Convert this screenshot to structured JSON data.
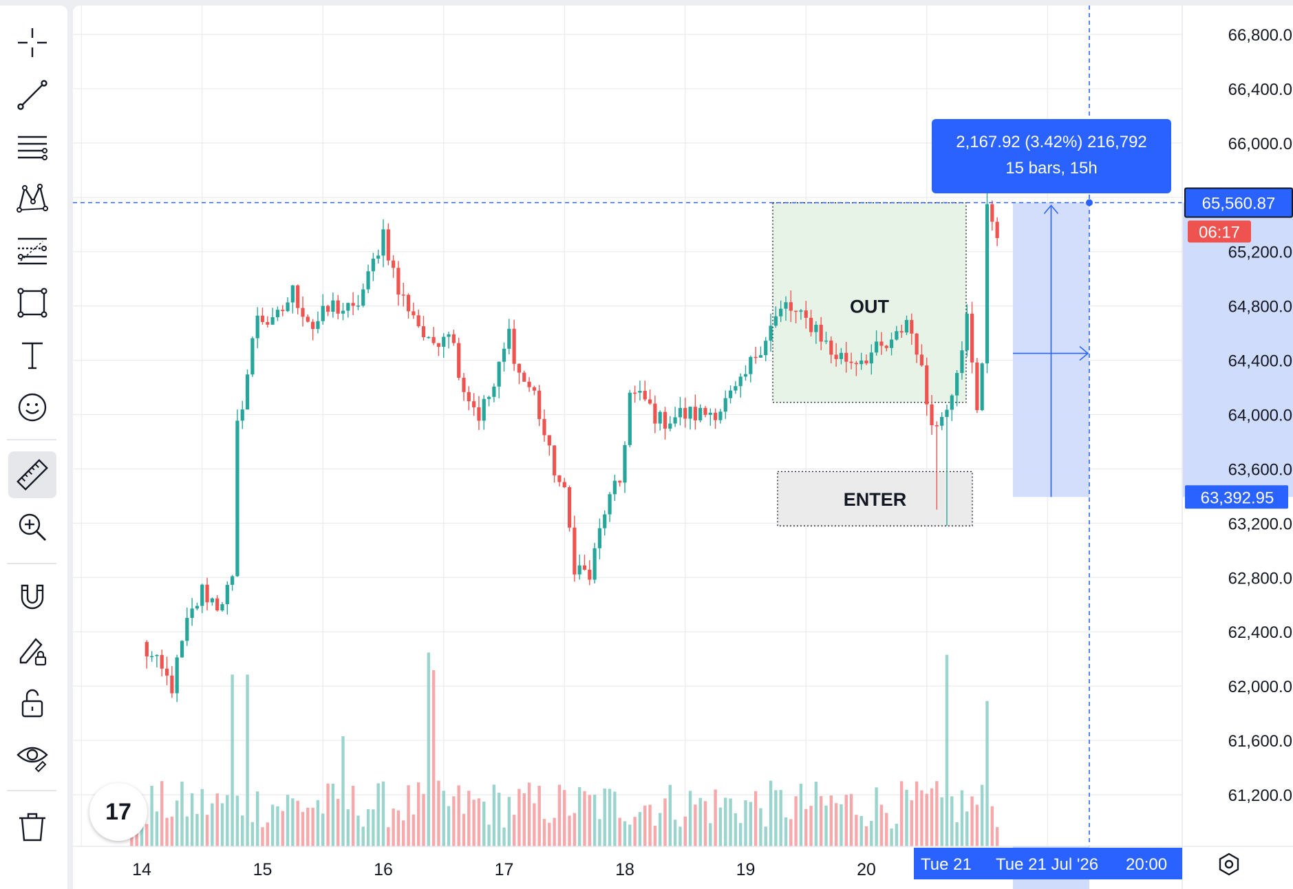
{
  "toolbar": {
    "tools": [
      {
        "name": "crosshair-icon"
      },
      {
        "name": "trend-line-icon"
      },
      {
        "name": "horizontal-lines-icon"
      },
      {
        "name": "pattern-icon"
      },
      {
        "name": "fib-retracement-icon"
      },
      {
        "name": "rectangle-icon"
      },
      {
        "name": "text-icon"
      },
      {
        "name": "emoji-icon"
      },
      {
        "name": "ruler-icon",
        "active": true
      },
      {
        "name": "zoom-in-icon"
      },
      {
        "name": "magnet-icon"
      },
      {
        "name": "lock-drawing-icon"
      },
      {
        "name": "unlock-icon"
      },
      {
        "name": "eye-icon"
      },
      {
        "name": "trash-icon"
      }
    ]
  },
  "colors": {
    "up": "#26a69a",
    "down": "#ef5350",
    "accent": "#2962ff",
    "out_zone": "#e8f3e8",
    "enter_zone": "#ebebeb",
    "measure_fill": "#d0dcfc"
  },
  "logo": "17",
  "annotations": {
    "out_label": "OUT",
    "enter_label": "ENTER",
    "measure_line1": "2,167.92 (3.42%) 216,792",
    "measure_line2": "15 bars, 15h"
  },
  "price_tags": {
    "current_price": "65,560.87",
    "countdown": "06:17",
    "measure_low": "63,392.95"
  },
  "time_tags": {
    "crosshair_short": "Tue 21",
    "crosshair_full": "Tue 21 Jul '26",
    "crosshair_time": "20:00"
  },
  "chart_data": {
    "type": "candlestick",
    "symbol_note": "Hourly candles with volume histogram",
    "price_axis_labels": [
      "66,800.00",
      "66,400.00",
      "66,000.00",
      "65,200.00",
      "64,800.00",
      "64,400.00",
      "64,000.00",
      "63,600.00",
      "63,200.00",
      "62,800.00",
      "62,400.00",
      "62,000.00",
      "61,600.00",
      "61,200.00"
    ],
    "ylim": [
      60950,
      67050
    ],
    "time_axis_labels": [
      "14",
      "15",
      "16",
      "17",
      "18",
      "19",
      "20"
    ],
    "grid": true,
    "current_price": 65560.87,
    "measure": {
      "from_price": 63392.95,
      "to_price": 65560.87,
      "change": 2167.92,
      "percent": 3.42,
      "ticks": 216792,
      "bars": 15,
      "duration": "15h"
    },
    "zones": [
      {
        "label": "OUT",
        "top": 65560,
        "bottom": 64090
      },
      {
        "label": "ENTER",
        "top": 63580,
        "bottom": 63180
      }
    ],
    "anchors": [
      {
        "hour": 0,
        "price": 62300
      },
      {
        "hour": 3,
        "price": 62150
      },
      {
        "hour": 6,
        "price": 62000
      },
      {
        "hour": 9,
        "price": 62450
      },
      {
        "hour": 12,
        "price": 62700
      },
      {
        "hour": 15,
        "price": 62600
      },
      {
        "hour": 18,
        "price": 62750
      },
      {
        "hour": 19,
        "price": 63900
      },
      {
        "hour": 21,
        "price": 64300
      },
      {
        "hour": 23,
        "price": 64750
      },
      {
        "hour": 26,
        "price": 64650
      },
      {
        "hour": 30,
        "price": 64900
      },
      {
        "hour": 34,
        "price": 64650
      },
      {
        "hour": 38,
        "price": 64800
      },
      {
        "hour": 42,
        "price": 64750
      },
      {
        "hour": 45,
        "price": 65000
      },
      {
        "hour": 48,
        "price": 65350
      },
      {
        "hour": 51,
        "price": 64900
      },
      {
        "hour": 54,
        "price": 64750
      },
      {
        "hour": 57,
        "price": 64500
      },
      {
        "hour": 61,
        "price": 64650
      },
      {
        "hour": 64,
        "price": 64200
      },
      {
        "hour": 67,
        "price": 64000
      },
      {
        "hour": 70,
        "price": 64200
      },
      {
        "hour": 73,
        "price": 64600
      },
      {
        "hour": 75,
        "price": 64300
      },
      {
        "hour": 78,
        "price": 64150
      },
      {
        "hour": 81,
        "price": 63700
      },
      {
        "hour": 84,
        "price": 63400
      },
      {
        "hour": 86,
        "price": 62900
      },
      {
        "hour": 89,
        "price": 62800
      },
      {
        "hour": 92,
        "price": 63300
      },
      {
        "hour": 95,
        "price": 63500
      },
      {
        "hour": 97,
        "price": 64150
      },
      {
        "hour": 100,
        "price": 64100
      },
      {
        "hour": 103,
        "price": 63950
      },
      {
        "hour": 107,
        "price": 64000
      },
      {
        "hour": 111,
        "price": 64000
      },
      {
        "hour": 115,
        "price": 64050
      },
      {
        "hour": 119,
        "price": 64200
      },
      {
        "hour": 122,
        "price": 64450
      },
      {
        "hour": 125,
        "price": 64650
      },
      {
        "hour": 128,
        "price": 64800
      },
      {
        "hour": 131,
        "price": 64700
      },
      {
        "hour": 134,
        "price": 64650
      },
      {
        "hour": 137,
        "price": 64450
      },
      {
        "hour": 141,
        "price": 64400
      },
      {
        "hour": 145,
        "price": 64450
      },
      {
        "hour": 149,
        "price": 64500
      },
      {
        "hour": 152,
        "price": 64700
      },
      {
        "hour": 154,
        "price": 64500
      },
      {
        "hour": 156,
        "price": 64100
      },
      {
        "hour": 158,
        "price": 63900
      },
      {
        "hour": 161,
        "price": 64200
      },
      {
        "hour": 164,
        "price": 64700
      },
      {
        "hour": 166,
        "price": 64000
      },
      {
        "hour": 167,
        "price": 64400
      },
      {
        "hour": 168,
        "price": 65550
      },
      {
        "hour": 170,
        "price": 65300
      }
    ],
    "volume_spikes": [
      {
        "hour": 18,
        "size": 0.78
      },
      {
        "hour": 21,
        "size": 0.78
      },
      {
        "hour": 40,
        "size": 0.5
      },
      {
        "hour": 57,
        "size": 0.88
      },
      {
        "hour": 58,
        "size": 0.8
      },
      {
        "hour": 160,
        "size": 0.87
      },
      {
        "hour": 168,
        "size": 0.66
      }
    ],
    "x_domain_hours": [
      -12,
      204
    ],
    "day_ticks": [
      {
        "label": "14",
        "hour": 0
      },
      {
        "label": "15",
        "hour": 24
      },
      {
        "label": "16",
        "hour": 48
      },
      {
        "label": "17",
        "hour": 72
      },
      {
        "label": "18",
        "hour": 96
      },
      {
        "label": "19",
        "hour": 120
      },
      {
        "label": "20",
        "hour": 144
      }
    ],
    "crosshair_hour": 185
  }
}
